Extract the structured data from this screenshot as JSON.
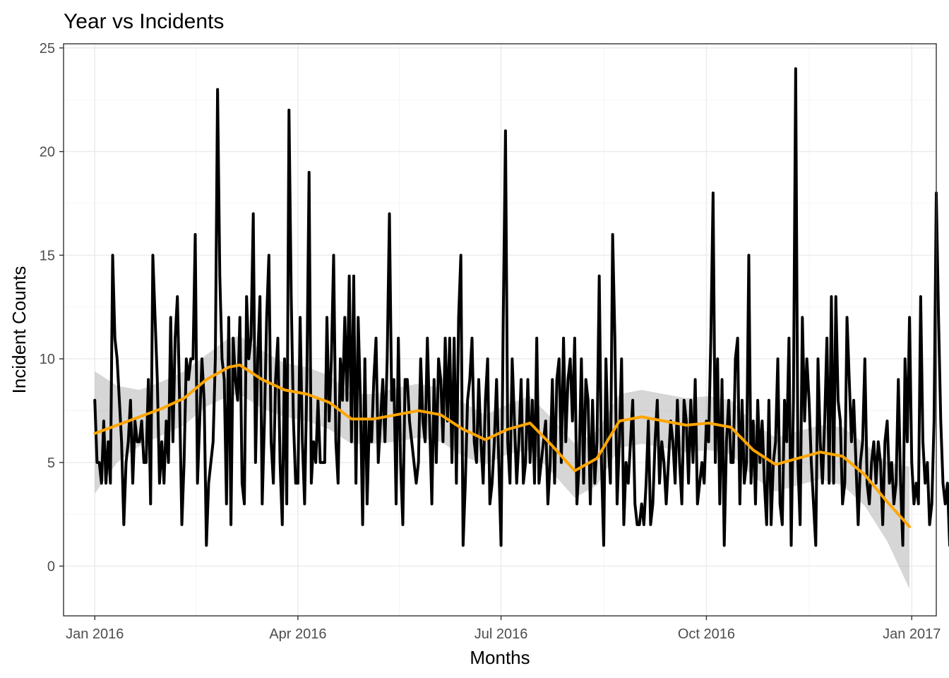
{
  "chart_data": {
    "type": "line",
    "title": "Year vs Incidents",
    "xlabel": "Months",
    "ylabel": "Incident Counts",
    "xlim": [
      "2015-12-18",
      "2017-01-12"
    ],
    "ylim": [
      -2.4,
      25.2
    ],
    "x_ticks": [
      {
        "date": "2016-01-01",
        "label": "Jan 2016"
      },
      {
        "date": "2016-04-01",
        "label": "Apr 2016"
      },
      {
        "date": "2016-07-01",
        "label": "Jul 2016"
      },
      {
        "date": "2016-10-01",
        "label": "Oct 2016"
      },
      {
        "date": "2017-01-01",
        "label": "Jan 2017"
      }
    ],
    "y_ticks": [
      0,
      5,
      10,
      15,
      20,
      25
    ],
    "grid": true,
    "legend": "none",
    "series": [
      {
        "role": "daily_counts",
        "color": "#000000",
        "x_start": "2016-01-01",
        "x_end": "2016-12-31",
        "values": [
          8,
          5,
          5,
          4,
          7,
          4,
          6,
          4,
          15,
          11,
          10,
          8,
          6,
          2,
          5,
          6,
          8,
          4,
          7,
          6,
          6,
          7,
          5,
          5,
          9,
          3,
          15,
          12,
          9,
          4,
          6,
          4,
          7,
          5,
          12,
          6,
          11,
          13,
          8,
          2,
          5,
          10,
          9,
          10,
          10,
          16,
          4,
          7,
          10,
          8,
          1,
          4,
          5,
          6,
          10,
          23,
          14,
          10,
          9,
          3,
          12,
          2,
          11,
          9,
          8,
          12,
          4,
          3,
          13,
          10,
          11,
          17,
          5,
          10,
          13,
          3,
          7,
          12,
          15,
          6,
          4,
          9,
          11,
          5,
          2,
          10,
          3,
          22,
          13,
          7,
          4,
          4,
          12,
          6,
          3,
          9,
          19,
          4,
          6,
          5,
          8,
          5,
          5,
          5,
          12,
          7,
          10,
          15,
          6,
          4,
          10,
          8,
          12,
          8,
          14,
          6,
          14,
          4,
          12,
          8,
          2,
          10,
          3,
          7,
          6,
          9,
          11,
          5,
          7,
          9,
          6,
          10,
          17,
          8,
          9,
          3,
          11,
          5,
          2,
          9,
          9,
          7,
          6,
          5,
          4,
          5,
          10,
          7,
          6,
          11,
          7,
          3,
          9,
          5,
          10,
          9,
          6,
          11,
          7,
          11,
          5,
          11,
          4,
          12,
          15,
          1,
          4,
          8,
          9,
          11,
          6,
          5,
          9,
          6,
          4,
          8,
          10,
          3,
          4,
          6,
          9,
          5,
          1,
          12,
          21,
          6,
          4,
          10,
          7,
          4,
          6,
          9,
          4,
          5,
          9,
          5,
          8,
          4,
          11,
          4,
          5,
          6,
          7,
          3,
          5,
          9,
          4,
          9,
          10,
          5,
          11,
          6,
          9,
          10,
          7,
          11,
          3,
          5,
          10,
          4,
          9,
          8,
          3,
          8,
          4,
          6,
          14,
          5,
          1,
          10,
          6,
          4,
          16,
          11,
          3,
          6,
          10,
          2,
          5,
          4,
          6,
          8,
          3,
          2,
          2,
          3,
          2,
          4,
          7,
          2,
          3,
          6,
          8,
          4,
          6,
          5,
          3,
          5,
          7,
          6,
          4,
          8,
          5,
          3,
          8,
          7,
          4,
          8,
          5,
          9,
          3,
          4,
          5,
          4,
          7,
          6,
          11,
          18,
          5,
          10,
          3,
          9,
          1,
          6,
          8,
          5,
          5,
          10,
          11,
          3,
          8,
          4,
          5,
          15,
          4,
          7,
          3,
          8,
          5,
          7,
          4,
          2,
          8,
          2,
          5,
          6,
          10,
          3,
          2,
          8,
          6,
          11,
          1,
          8,
          24,
          5,
          2,
          12,
          7,
          10,
          8,
          5,
          3,
          1,
          10,
          6,
          4,
          7,
          11,
          4,
          13,
          4,
          13,
          8,
          7,
          3,
          4,
          12,
          9,
          6,
          8,
          5,
          2,
          5,
          6,
          10,
          4,
          3,
          5,
          6,
          4,
          6,
          5,
          2,
          6,
          7,
          4,
          5,
          3,
          4,
          9,
          4,
          1,
          10,
          6,
          12,
          5,
          3,
          4,
          3,
          13,
          6,
          4,
          5,
          2,
          3,
          7,
          18,
          12,
          7,
          4,
          3,
          4,
          1,
          4,
          5,
          8,
          6,
          3,
          6,
          4,
          4,
          3,
          2,
          5,
          1,
          6,
          2,
          4,
          5,
          3,
          5,
          6,
          1,
          1
        ]
      },
      {
        "role": "smooth_fit",
        "color": "#ffa500",
        "band_color": "#999999",
        "points": [
          {
            "x": "2016-01-01",
            "y": 6.4,
            "lo": 3.5,
            "hi": 9.4
          },
          {
            "x": "2016-01-11",
            "y": 6.8,
            "lo": 5.0,
            "hi": 8.7
          },
          {
            "x": "2016-01-21",
            "y": 7.2,
            "lo": 5.8,
            "hi": 8.5
          },
          {
            "x": "2016-01-31",
            "y": 7.6,
            "lo": 6.3,
            "hi": 8.9
          },
          {
            "x": "2016-02-10",
            "y": 8.1,
            "lo": 6.8,
            "hi": 9.4
          },
          {
            "x": "2016-02-20",
            "y": 9.0,
            "lo": 7.7,
            "hi": 10.2
          },
          {
            "x": "2016-03-01",
            "y": 9.6,
            "lo": 8.2,
            "hi": 11.0
          },
          {
            "x": "2016-03-06",
            "y": 9.7,
            "lo": 8.3,
            "hi": 11.1
          },
          {
            "x": "2016-03-16",
            "y": 9.0,
            "lo": 7.6,
            "hi": 10.4
          },
          {
            "x": "2016-03-26",
            "y": 8.5,
            "lo": 7.2,
            "hi": 9.8
          },
          {
            "x": "2016-04-05",
            "y": 8.3,
            "lo": 7.0,
            "hi": 9.6
          },
          {
            "x": "2016-04-15",
            "y": 7.9,
            "lo": 6.6,
            "hi": 9.2
          },
          {
            "x": "2016-04-25",
            "y": 7.1,
            "lo": 5.9,
            "hi": 8.3
          },
          {
            "x": "2016-05-05",
            "y": 7.1,
            "lo": 5.9,
            "hi": 8.3
          },
          {
            "x": "2016-05-15",
            "y": 7.3,
            "lo": 6.0,
            "hi": 8.6
          },
          {
            "x": "2016-05-25",
            "y": 7.5,
            "lo": 6.2,
            "hi": 8.8
          },
          {
            "x": "2016-06-04",
            "y": 7.3,
            "lo": 6.0,
            "hi": 8.6
          },
          {
            "x": "2016-06-14",
            "y": 6.6,
            "lo": 5.3,
            "hi": 7.9
          },
          {
            "x": "2016-06-24",
            "y": 6.1,
            "lo": 4.9,
            "hi": 7.3
          },
          {
            "x": "2016-07-04",
            "y": 6.6,
            "lo": 5.4,
            "hi": 7.8
          },
          {
            "x": "2016-07-14",
            "y": 6.9,
            "lo": 5.6,
            "hi": 8.2
          },
          {
            "x": "2016-07-24",
            "y": 5.8,
            "lo": 4.5,
            "hi": 7.1
          },
          {
            "x": "2016-08-03",
            "y": 4.6,
            "lo": 3.3,
            "hi": 5.9
          },
          {
            "x": "2016-08-13",
            "y": 5.2,
            "lo": 3.9,
            "hi": 6.5
          },
          {
            "x": "2016-08-23",
            "y": 7.0,
            "lo": 5.7,
            "hi": 8.3
          },
          {
            "x": "2016-09-02",
            "y": 7.2,
            "lo": 5.9,
            "hi": 8.5
          },
          {
            "x": "2016-09-12",
            "y": 7.0,
            "lo": 5.7,
            "hi": 8.3
          },
          {
            "x": "2016-09-22",
            "y": 6.8,
            "lo": 5.5,
            "hi": 8.1
          },
          {
            "x": "2016-10-02",
            "y": 6.9,
            "lo": 5.6,
            "hi": 8.2
          },
          {
            "x": "2016-10-12",
            "y": 6.7,
            "lo": 5.4,
            "hi": 8.0
          },
          {
            "x": "2016-10-22",
            "y": 5.6,
            "lo": 4.3,
            "hi": 6.9
          },
          {
            "x": "2016-11-01",
            "y": 4.9,
            "lo": 3.6,
            "hi": 6.2
          },
          {
            "x": "2016-11-11",
            "y": 5.2,
            "lo": 3.9,
            "hi": 6.5
          },
          {
            "x": "2016-11-21",
            "y": 5.5,
            "lo": 4.2,
            "hi": 6.8
          },
          {
            "x": "2016-12-01",
            "y": 5.3,
            "lo": 3.9,
            "hi": 6.7
          },
          {
            "x": "2016-12-11",
            "y": 4.4,
            "lo": 2.9,
            "hi": 5.9
          },
          {
            "x": "2016-12-21",
            "y": 3.1,
            "lo": 1.2,
            "hi": 5.0
          },
          {
            "x": "2016-12-31",
            "y": 1.9,
            "lo": -1.1,
            "hi": 4.8
          }
        ]
      }
    ]
  }
}
